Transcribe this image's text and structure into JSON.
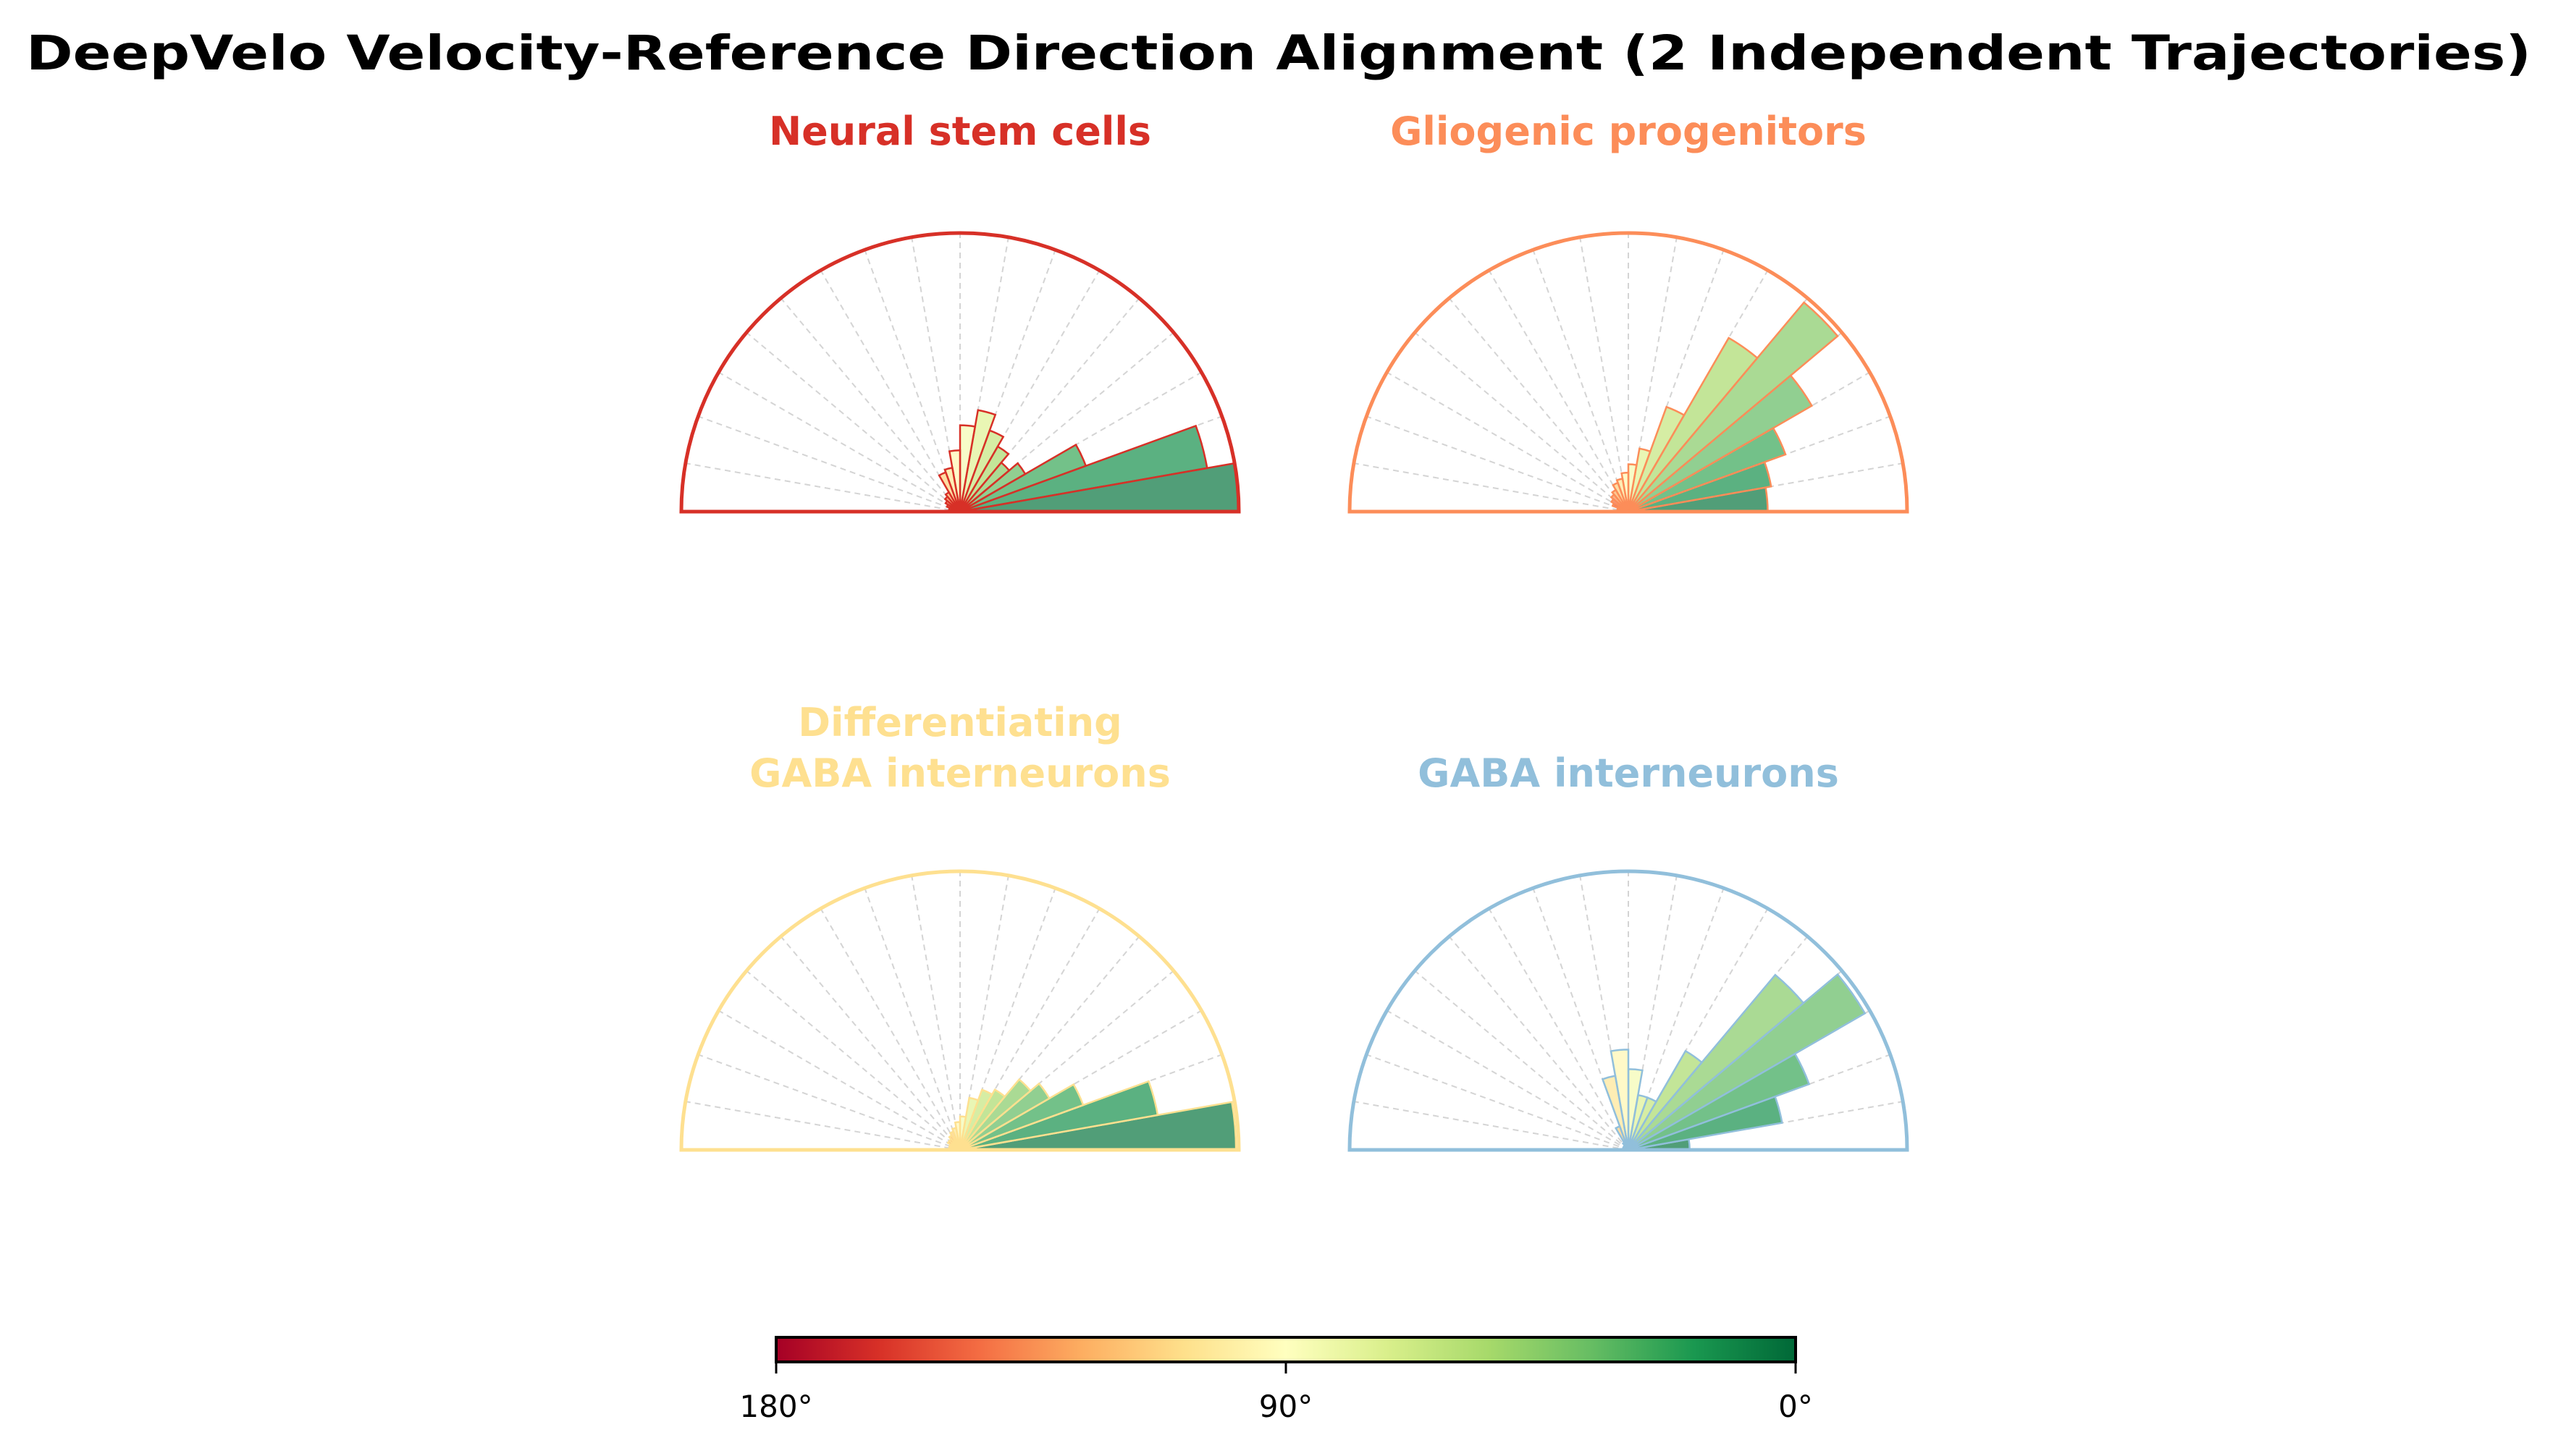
{
  "chart_data": {
    "type": "polar-histogram",
    "title": "DeepVelo Velocity-Reference Direction Alignment (2 Independent Trajectories)",
    "bin_edges_deg": [
      0,
      10,
      20,
      30,
      40,
      50,
      60,
      70,
      80,
      90,
      100,
      110,
      120,
      130,
      140,
      150,
      160,
      170,
      180
    ],
    "value_units": "relative frequency (fraction of max)",
    "colormap": {
      "name": "RdYlGn (0° green → 180° red)",
      "stops": [
        "#a50026",
        "#d73027",
        "#f46d43",
        "#fdae61",
        "#fee08b",
        "#ffffbf",
        "#d9ef8b",
        "#a6d96a",
        "#66bd63",
        "#1a9850",
        "#006837"
      ],
      "ticks": [
        "180°",
        "90°",
        "0°"
      ],
      "range": [
        180,
        0
      ]
    },
    "panels": [
      {
        "title_lines": [
          "Neural stem cells"
        ],
        "color": "#d73027",
        "values": [
          1.0,
          0.9,
          0.48,
          0.27,
          0.23,
          0.27,
          0.31,
          0.37,
          0.31,
          0.22,
          0.16,
          0.15,
          0.08,
          0.07,
          0.06,
          0.05,
          0.04,
          0.03
        ]
      },
      {
        "title_lines": [
          "Gliogenic progenitors"
        ],
        "color": "#fc8d59",
        "values": [
          0.5,
          0.52,
          0.6,
          0.76,
          0.98,
          0.72,
          0.4,
          0.23,
          0.17,
          0.14,
          0.12,
          0.11,
          0.09,
          0.08,
          0.07,
          0.06,
          0.04,
          0.03
        ]
      },
      {
        "title_lines": [
          "Differentiating",
          "GABA interneurons"
        ],
        "color": "#fee090",
        "values": [
          0.99,
          0.72,
          0.47,
          0.37,
          0.33,
          0.25,
          0.23,
          0.19,
          0.12,
          0.1,
          0.08,
          0.07,
          0.06,
          0.05,
          0.05,
          0.04,
          0.04,
          0.03
        ]
      },
      {
        "title_lines": [
          "GABA interneurons"
        ],
        "color": "#91bfdb",
        "values": [
          0.22,
          0.56,
          0.69,
          0.98,
          0.82,
          0.41,
          0.2,
          0.2,
          0.29,
          0.36,
          0.27,
          0.09,
          0.03,
          0.02,
          0.02,
          0.02,
          0.01,
          0.01
        ]
      }
    ]
  }
}
